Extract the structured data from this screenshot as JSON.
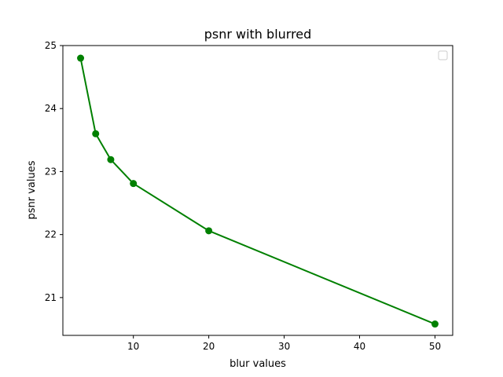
{
  "chart_data": {
    "type": "line",
    "title": "psnr with blurred",
    "xlabel": "blur values",
    "ylabel": "psnr values",
    "xlim": [
      0.65,
      52.35
    ],
    "ylim": [
      20.4,
      25.0
    ],
    "xticks": [
      10,
      20,
      30,
      40,
      50
    ],
    "yticks": [
      21,
      22,
      23,
      24,
      25
    ],
    "grid": false,
    "legend": {
      "placement": "top-right",
      "entries": []
    },
    "series": [
      {
        "color": "#008000",
        "marker": "circle",
        "x": [
          3,
          5,
          7,
          10,
          20,
          50
        ],
        "y": [
          24.8,
          23.6,
          23.19,
          22.81,
          22.06,
          20.58
        ]
      }
    ]
  }
}
